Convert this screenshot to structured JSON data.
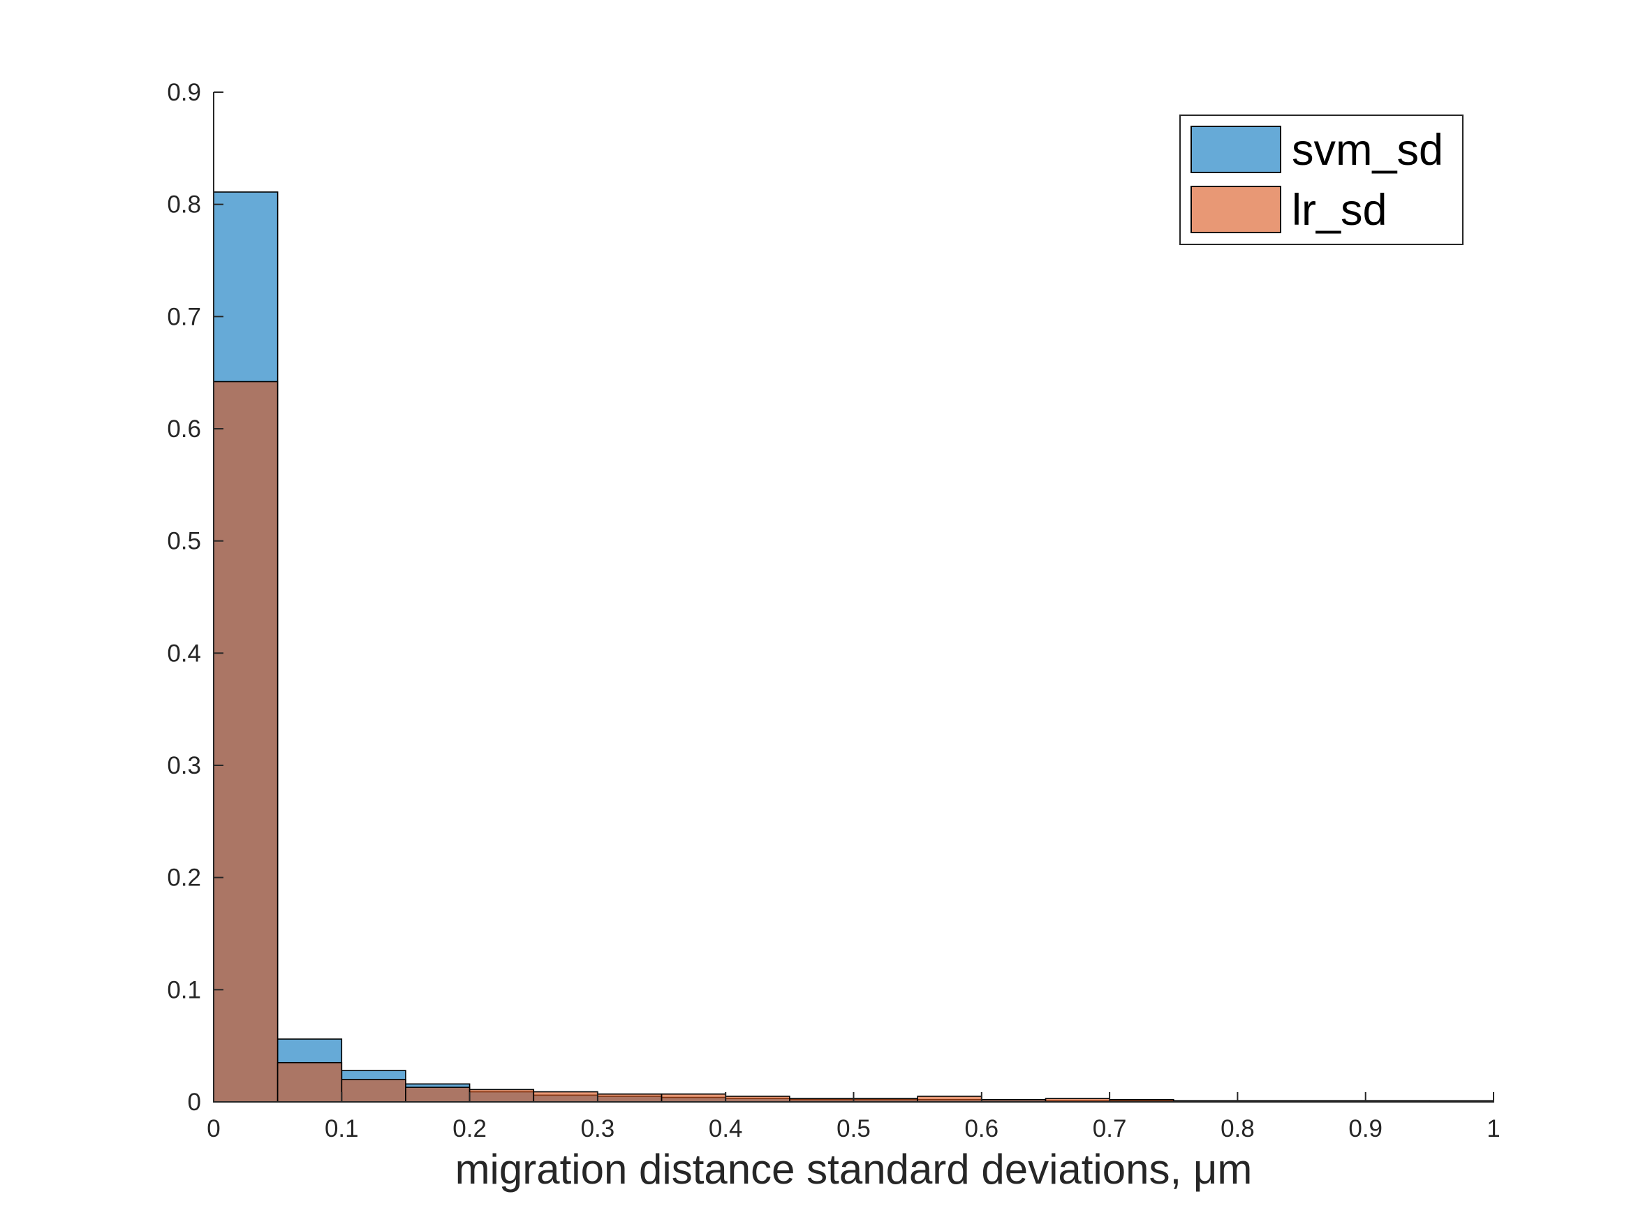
{
  "chart_data": {
    "type": "bar",
    "subtype": "overlapping-histogram",
    "title": "",
    "xlabel": "migration distance standard deviations, μm",
    "ylabel": "",
    "xlim": [
      0,
      1
    ],
    "ylim": [
      0,
      0.9
    ],
    "x_ticks": [
      "0",
      "0.1",
      "0.2",
      "0.3",
      "0.4",
      "0.5",
      "0.6",
      "0.7",
      "0.8",
      "0.9",
      "1"
    ],
    "y_ticks": [
      "0",
      "0.1",
      "0.2",
      "0.3",
      "0.4",
      "0.5",
      "0.6",
      "0.7",
      "0.8",
      "0.9"
    ],
    "bin_edges": [
      0,
      0.05,
      0.1,
      0.15,
      0.2,
      0.25,
      0.3,
      0.35,
      0.4,
      0.45,
      0.5,
      0.55,
      0.6,
      0.65,
      0.7,
      0.75,
      0.8,
      0.85,
      0.9,
      0.95,
      1.0
    ],
    "series": [
      {
        "name": "svm_sd",
        "color": "#0072BD",
        "values": [
          0.811,
          0.056,
          0.028,
          0.016,
          0.009,
          0.006,
          0.005,
          0.004,
          0.003,
          0.002,
          0.002,
          0.002,
          0.002,
          0.001,
          0.001,
          0.001,
          0.001,
          0.001,
          0.001,
          0.0005
        ]
      },
      {
        "name": "lr_sd",
        "color": "#D95319",
        "values": [
          0.642,
          0.035,
          0.02,
          0.013,
          0.011,
          0.009,
          0.007,
          0.007,
          0.005,
          0.003,
          0.003,
          0.005,
          0.002,
          0.003,
          0.002,
          0.001,
          0.001,
          0.001,
          0.001,
          0.001
        ]
      }
    ],
    "face_alpha": 0.6,
    "grid": false,
    "legend_position": "top-right"
  }
}
